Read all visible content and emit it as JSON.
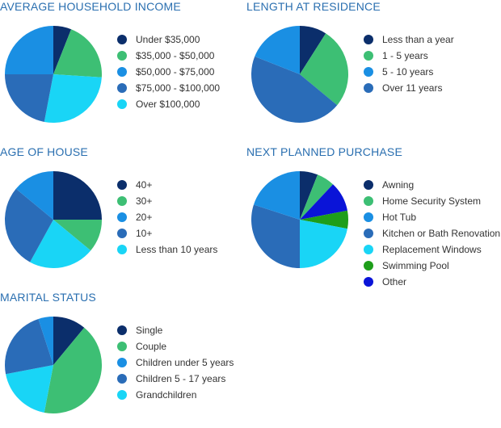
{
  "chart_data": [
    {
      "id": "income",
      "type": "pie",
      "title": "AVERAGE HOUSEHOLD INCOME",
      "slices": [
        {
          "label": "Under $35,000",
          "value": 6,
          "color": "#0b2e6b"
        },
        {
          "label": "$35,000 - $50,000",
          "value": 20,
          "color": "#3dbf74"
        },
        {
          "label": "$50,000 - $75,000",
          "value": 25,
          "color": "#1a8fe3"
        },
        {
          "label": "$75,000 - $100,000",
          "value": 22,
          "color": "#2a6cb8"
        },
        {
          "label": "Over $100,000",
          "value": 27,
          "color": "#19d5f6"
        }
      ],
      "order": [
        0,
        1,
        4,
        3,
        2
      ]
    },
    {
      "id": "residence",
      "type": "pie",
      "title": "LENGTH AT RESIDENCE",
      "slices": [
        {
          "label": "Less than a year",
          "value": 9,
          "color": "#0b2e6b"
        },
        {
          "label": "1 - 5 years",
          "value": 27,
          "color": "#3dbf74"
        },
        {
          "label": "5 - 10 years",
          "value": 19,
          "color": "#1a8fe3"
        },
        {
          "label": "Over 11 years",
          "value": 45,
          "color": "#2a6cb8"
        }
      ],
      "order": [
        0,
        1,
        3,
        2
      ]
    },
    {
      "id": "house-age",
      "type": "pie",
      "title": "AGE OF HOUSE",
      "slices": [
        {
          "label": "40+",
          "value": 25,
          "color": "#0b2e6b"
        },
        {
          "label": "30+",
          "value": 11,
          "color": "#3dbf74"
        },
        {
          "label": "20+",
          "value": 14,
          "color": "#1a8fe3"
        },
        {
          "label": "10+",
          "value": 28,
          "color": "#2a6cb8"
        },
        {
          "label": "Less than 10 years",
          "value": 22,
          "color": "#19d5f6"
        }
      ],
      "order": [
        0,
        1,
        4,
        3,
        2
      ]
    },
    {
      "id": "purchase",
      "type": "pie",
      "title": "NEXT PLANNED PURCHASE",
      "slices": [
        {
          "label": "Awning",
          "value": 6,
          "color": "#0b2e6b"
        },
        {
          "label": "Home Security System",
          "value": 6,
          "color": "#3dbf74"
        },
        {
          "label": "Hot Tub",
          "value": 20,
          "color": "#1a8fe3"
        },
        {
          "label": "Kitchen or Bath Renovation",
          "value": 30,
          "color": "#2a6cb8"
        },
        {
          "label": "Replacement Windows",
          "value": 22,
          "color": "#19d5f6"
        },
        {
          "label": "Swimming Pool",
          "value": 6,
          "color": "#1e9e1a"
        },
        {
          "label": "Other",
          "value": 10,
          "color": "#0a14d8"
        }
      ],
      "order": [
        0,
        1,
        6,
        5,
        4,
        3,
        2
      ]
    },
    {
      "id": "marital",
      "type": "pie",
      "title": "MARITAL STATUS",
      "slices": [
        {
          "label": "Single",
          "value": 11,
          "color": "#0b2e6b"
        },
        {
          "label": "Couple",
          "value": 42,
          "color": "#3dbf74"
        },
        {
          "label": "Children under 5 years",
          "value": 5,
          "color": "#1a8fe3"
        },
        {
          "label": "Children 5 - 17 years",
          "value": 23,
          "color": "#2a6cb8"
        },
        {
          "label": "Grandchildren",
          "value": 19,
          "color": "#19d5f6"
        }
      ],
      "order": [
        0,
        1,
        4,
        3,
        2
      ]
    }
  ]
}
